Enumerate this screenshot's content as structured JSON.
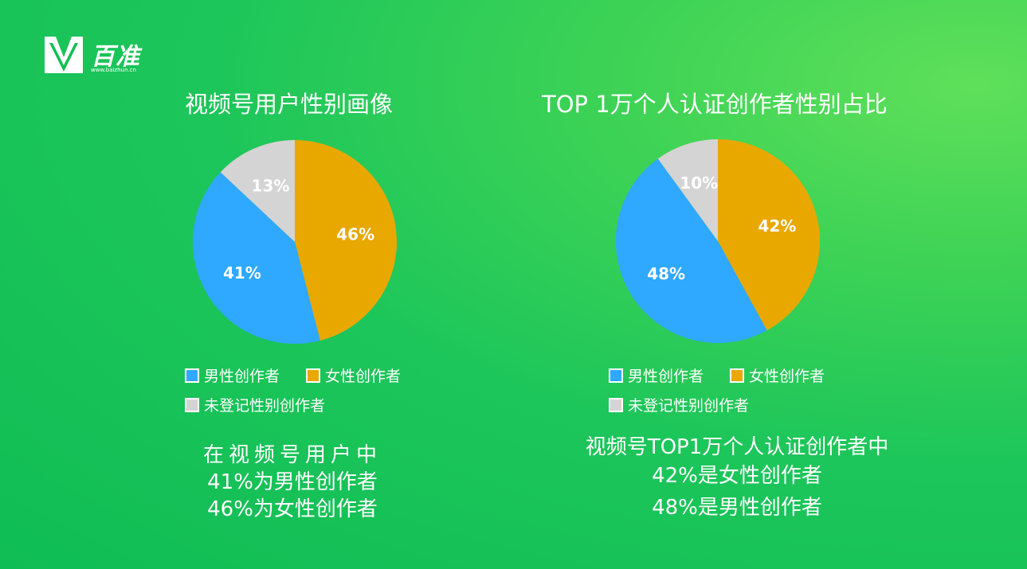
{
  "logo": {
    "brand": "百准",
    "url": "www.baizhun.cn"
  },
  "chart_data": [
    {
      "type": "pie",
      "title": "视频号用户性别画像",
      "categories": [
        "男性创作者",
        "女性创作者",
        "未登记性别创作者"
      ],
      "values": [
        41,
        46,
        13
      ],
      "labels": [
        "41%",
        "46%",
        "13%"
      ],
      "colors": [
        "#2fa8ff",
        "#e8a800",
        "#d4d4d4"
      ],
      "summary": [
        "在视频号用户中",
        "41%为男性创作者",
        "46%为女性创作者"
      ]
    },
    {
      "type": "pie",
      "title": "TOP 1万个人认证创作者性别占比",
      "categories": [
        "男性创作者",
        "女性创作者",
        "未登记性别创作者"
      ],
      "values": [
        48,
        42,
        10
      ],
      "labels": [
        "48%",
        "42%",
        "10%"
      ],
      "colors": [
        "#2fa8ff",
        "#e8a800",
        "#d4d4d4"
      ],
      "summary": [
        "视频号TOP1万个人认证创作者中",
        "42%是女性创作者",
        "48%是男性创作者"
      ]
    }
  ]
}
